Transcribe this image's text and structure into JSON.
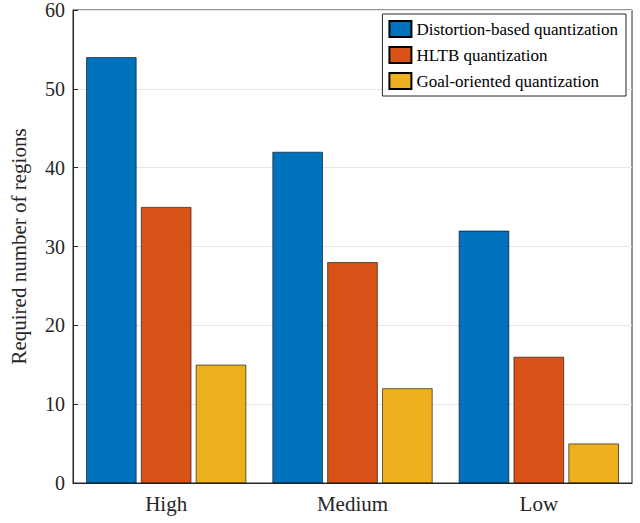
{
  "chart_data": {
    "type": "bar",
    "categories": [
      "High",
      "Medium",
      "Low"
    ],
    "series": [
      {
        "name": "Distortion-based quantization",
        "color": "#0072BD",
        "values": [
          54,
          42,
          32
        ]
      },
      {
        "name": "HLTB quantization",
        "color": "#D95319",
        "values": [
          35,
          28,
          16
        ]
      },
      {
        "name": "Goal-oriented quantization",
        "color": "#EDB120",
        "values": [
          15,
          12,
          5
        ]
      }
    ],
    "y_label": "Required number of regions",
    "ylim": [
      0,
      60
    ],
    "yticks": [
      0,
      10,
      20,
      30,
      40,
      50,
      60
    ],
    "grid": true,
    "legend": "top-right"
  }
}
